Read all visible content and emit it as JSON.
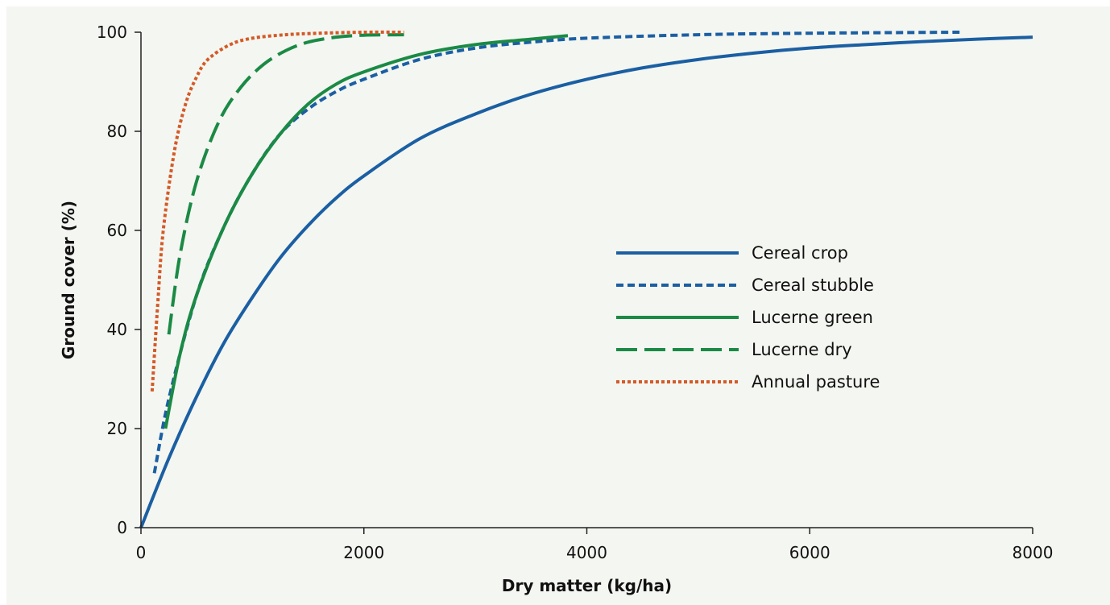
{
  "chart_data": {
    "type": "line",
    "xlabel": "Dry matter (kg/ha)",
    "ylabel": "Ground cover (%)",
    "xlim": [
      0,
      8000
    ],
    "ylim": [
      0,
      100
    ],
    "x_ticks": [
      "0",
      "2000",
      "4000",
      "6000",
      "8000"
    ],
    "y_ticks": [
      "0",
      "20",
      "40",
      "60",
      "80",
      "100"
    ],
    "grid": false,
    "legend_position": "center-right",
    "series": [
      {
        "name": "Cereal crop",
        "color": "#1b5fa3",
        "style": "solid",
        "x": [
          0,
          250,
          500,
          750,
          1000,
          1250,
          1500,
          1750,
          2000,
          2500,
          3000,
          3500,
          4000,
          4500,
          5000,
          5500,
          6000,
          6500,
          7000,
          7500,
          8000
        ],
        "y": [
          0,
          14,
          26.5,
          37.5,
          46.5,
          54.5,
          61,
          66.5,
          71,
          78.5,
          83.5,
          87.5,
          90.5,
          92.8,
          94.5,
          95.8,
          96.8,
          97.5,
          98.1,
          98.6,
          99
        ]
      },
      {
        "name": "Cereal stubble",
        "color": "#1b5fa3",
        "style": "dashed",
        "x": [
          120,
          250,
          500,
          750,
          1000,
          1250,
          1500,
          1750,
          2000,
          2500,
          3000,
          3500,
          4000,
          5000,
          6000,
          7350
        ],
        "y": [
          11,
          26,
          47,
          61,
          71.5,
          79.5,
          84.5,
          88,
          90.5,
          94.5,
          96.8,
          98,
          98.8,
          99.5,
          99.8,
          100
        ]
      },
      {
        "name": "Lucerne green",
        "color": "#1a8a45",
        "style": "solid",
        "x": [
          220,
          350,
          500,
          750,
          1000,
          1250,
          1500,
          1750,
          2000,
          2500,
          3000,
          3500,
          3830
        ],
        "y": [
          20,
          35,
          47,
          61,
          71.5,
          79.5,
          85.5,
          89.5,
          92,
          95.5,
          97.5,
          98.6,
          99.3
        ]
      },
      {
        "name": "Lucerne dry",
        "color": "#1a8a45",
        "style": "long-dash",
        "x": [
          250,
          350,
          500,
          700,
          900,
          1100,
          1300,
          1500,
          1750,
          2000,
          2360
        ],
        "y": [
          39,
          55,
          70,
          82,
          89,
          93.5,
          96.3,
          98,
          99,
          99.4,
          99.5
        ]
      },
      {
        "name": "Annual pasture",
        "color": "#d45a27",
        "style": "dotted",
        "x": [
          100,
          150,
          200,
          300,
          400,
          500,
          600,
          800,
          1000,
          1300,
          1600,
          2000,
          2360
        ],
        "y": [
          27.5,
          45,
          60,
          76,
          85.5,
          91,
          94.5,
          97.5,
          98.8,
          99.5,
          99.8,
          100,
          100
        ]
      }
    ]
  }
}
